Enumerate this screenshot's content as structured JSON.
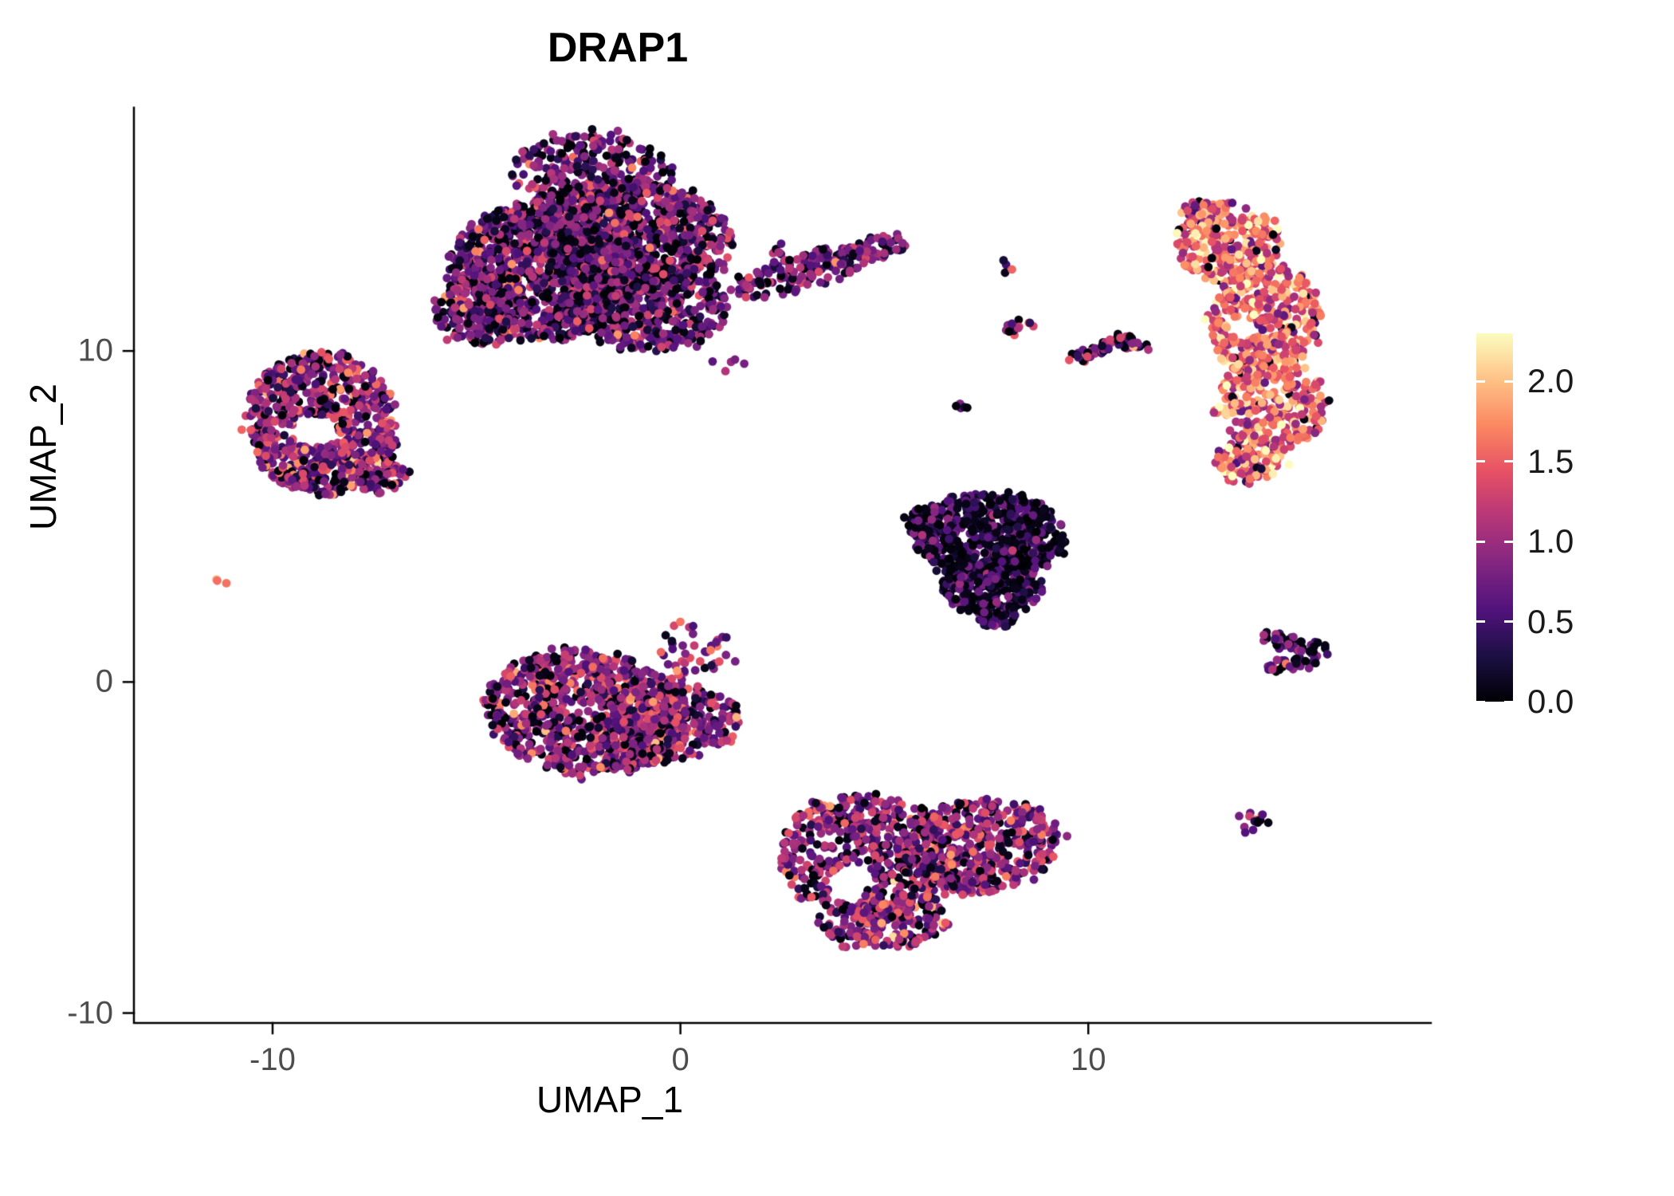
{
  "chart_data": {
    "type": "scatter",
    "title": "DRAP1",
    "xlabel": "UMAP_1",
    "ylabel": "UMAP_2",
    "xlim": [
      -13.4,
      18.4
    ],
    "ylim": [
      -10.3,
      17.35
    ],
    "grid": false,
    "legend_position": "right",
    "point_radius_px": 5.4,
    "seed": 20240613,
    "x_ticks": [
      {
        "value": -10,
        "label": "-10"
      },
      {
        "value": 0,
        "label": "0"
      },
      {
        "value": 10,
        "label": "10"
      }
    ],
    "y_ticks": [
      {
        "value": 10,
        "label": "10"
      },
      {
        "value": 0,
        "label": "0"
      },
      {
        "value": -10,
        "label": "-10"
      }
    ],
    "colorbar": {
      "min": 0,
      "max": 2.3,
      "palette": "magma",
      "ticks": [
        {
          "value": 0,
          "label": "0.0"
        },
        {
          "value": 0.5,
          "label": "0.5"
        },
        {
          "value": 1,
          "label": "1.0"
        },
        {
          "value": 1.5,
          "label": "1.5"
        },
        {
          "value": 2,
          "label": "2.0"
        }
      ],
      "stops": [
        [
          0,
          [
            0,
            0,
            4
          ]
        ],
        [
          0.125,
          [
            28,
            16,
            68
          ]
        ],
        [
          0.25,
          [
            81,
            18,
            124
          ]
        ],
        [
          0.375,
          [
            130,
            38,
            129
          ]
        ],
        [
          0.5,
          [
            182,
            54,
            121
          ]
        ],
        [
          0.625,
          [
            230,
            81,
            100
          ]
        ],
        [
          0.75,
          [
            251,
            136,
            97
          ]
        ],
        [
          0.875,
          [
            254,
            194,
            135
          ]
        ],
        [
          1,
          [
            252,
            253,
            191
          ]
        ]
      ]
    },
    "expression_profiles": {
      "mid": {
        "black_frac": 0.22,
        "mean": 0.78,
        "sd": 0.38
      },
      "midBright": {
        "black_frac": 0.15,
        "mean": 0.95,
        "sd": 0.4
      },
      "bright": {
        "black_frac": 0.03,
        "mean": 1.55,
        "sd": 0.42
      },
      "dark": {
        "black_frac": 0.45,
        "mean": 0.5,
        "sd": 0.3
      },
      "smallDark": {
        "black_frac": 0.3,
        "mean": 0.7,
        "sd": 0.35
      },
      "microMix": {
        "black_frac": 0.28,
        "mean": 0.95,
        "sd": 0.55
      },
      "tinyMix": {
        "black_frac": 0.25,
        "mean": 1.3,
        "sd": 0.5
      }
    },
    "clusters": [
      {
        "name": "main-top-a",
        "cx": -3.4,
        "cy": 12.4,
        "rx": 2.3,
        "ry": 2.1,
        "rot": 0,
        "n": 1000,
        "profile": "mid"
      },
      {
        "name": "main-top-b",
        "cx": -1.3,
        "cy": 13.5,
        "rx": 2.6,
        "ry": 1.7,
        "rot": -10,
        "n": 900,
        "profile": "mid"
      },
      {
        "name": "main-top-c",
        "cx": -0.8,
        "cy": 11.3,
        "rx": 1.9,
        "ry": 1.3,
        "rot": 0,
        "n": 420,
        "profile": "mid"
      },
      {
        "name": "main-top-d",
        "cx": -4.8,
        "cy": 11.2,
        "rx": 1.2,
        "ry": 1.0,
        "rot": 20,
        "n": 200,
        "profile": "mid"
      },
      {
        "name": "main-top-e",
        "cx": -2.2,
        "cy": 15.4,
        "rx": 2.0,
        "ry": 1.2,
        "rot": 0,
        "n": 260,
        "profile": "mid"
      },
      {
        "name": "arm-a",
        "cx": 3.0,
        "cy": 12.4,
        "rx": 1.8,
        "ry": 0.5,
        "rot": 18,
        "n": 150,
        "profile": "mid"
      },
      {
        "name": "arm-b",
        "cx": 4.7,
        "cy": 13.1,
        "rx": 0.9,
        "ry": 0.35,
        "rot": 10,
        "n": 50,
        "profile": "mid"
      },
      {
        "name": "stray-a",
        "cx": 1.2,
        "cy": 9.6,
        "rx": 0.5,
        "ry": 0.3,
        "rot": 0,
        "n": 5,
        "profile": "mid"
      },
      {
        "name": "left-ring",
        "cx": -8.8,
        "cy": 7.8,
        "rx": 1.85,
        "ry": 2.15,
        "rot": 10,
        "n": 750,
        "profile": "midBright",
        "hole": {
          "x": -9.0,
          "y": 7.6,
          "r": 0.5
        }
      },
      {
        "name": "left-ring-tail",
        "cx": -7.4,
        "cy": 6.3,
        "rx": 0.65,
        "ry": 0.55,
        "rot": 0,
        "n": 80,
        "profile": "midBright"
      },
      {
        "name": "tiny-left",
        "cx": -11.2,
        "cy": 3.0,
        "rx": 0.2,
        "ry": 0.15,
        "rot": 0,
        "n": 3,
        "profile": "tinyMix"
      },
      {
        "name": "right-bright-spur",
        "cx": 12.8,
        "cy": 14.2,
        "rx": 0.45,
        "ry": 0.35,
        "rot": 0,
        "n": 35,
        "profile": "bright"
      },
      {
        "name": "right-bright-a",
        "cx": 13.4,
        "cy": 13.3,
        "rx": 1.3,
        "ry": 1.2,
        "rot": -15,
        "n": 270,
        "profile": "bright"
      },
      {
        "name": "right-bright-b",
        "cx": 14.35,
        "cy": 10.9,
        "rx": 1.35,
        "ry": 1.7,
        "rot": -5,
        "n": 380,
        "profile": "bright",
        "hole": {
          "x": 13.8,
          "y": 10.7,
          "r": 0.35
        }
      },
      {
        "name": "right-bright-c",
        "cx": 14.5,
        "cy": 8.4,
        "rx": 1.35,
        "ry": 1.4,
        "rot": 10,
        "n": 300,
        "profile": "bright"
      },
      {
        "name": "right-bright-d",
        "cx": 14.0,
        "cy": 6.7,
        "rx": 0.85,
        "ry": 0.7,
        "rot": 20,
        "n": 110,
        "profile": "bright"
      },
      {
        "name": "micro-a",
        "cx": 2.4,
        "cy": 13.0,
        "rx": 0.3,
        "ry": 0.22,
        "rot": 0,
        "n": 6,
        "profile": "microMix"
      },
      {
        "name": "micro-b",
        "cx": 8.35,
        "cy": 10.7,
        "rx": 0.45,
        "ry": 0.25,
        "rot": 15,
        "n": 12,
        "profile": "microMix"
      },
      {
        "name": "micro-c",
        "cx": 8.1,
        "cy": 12.6,
        "rx": 0.22,
        "ry": 0.18,
        "rot": 0,
        "n": 4,
        "profile": "smallDark"
      },
      {
        "name": "micro-arc-a",
        "cx": 10.1,
        "cy": 9.95,
        "rx": 0.55,
        "ry": 0.18,
        "rot": 20,
        "n": 32,
        "profile": "microMix"
      },
      {
        "name": "micro-arc-b",
        "cx": 11.0,
        "cy": 10.25,
        "rx": 0.5,
        "ry": 0.18,
        "rot": -10,
        "n": 28,
        "profile": "microMix"
      },
      {
        "name": "micro-d",
        "cx": 7.0,
        "cy": 8.3,
        "rx": 0.25,
        "ry": 0.18,
        "rot": 0,
        "n": 5,
        "profile": "smallDark"
      },
      {
        "name": "mid-right-a",
        "cx": 7.6,
        "cy": 4.4,
        "rx": 1.85,
        "ry": 1.35,
        "rot": 0,
        "n": 600,
        "profile": "dark"
      },
      {
        "name": "mid-right-b",
        "cx": 7.6,
        "cy": 2.9,
        "rx": 1.15,
        "ry": 0.85,
        "rot": 0,
        "n": 240,
        "profile": "dark"
      },
      {
        "name": "mid-right-tip",
        "cx": 7.7,
        "cy": 2.0,
        "rx": 0.45,
        "ry": 0.4,
        "rot": 0,
        "n": 45,
        "profile": "dark"
      },
      {
        "name": "mid-right-left",
        "cx": 6.1,
        "cy": 4.8,
        "rx": 0.55,
        "ry": 0.5,
        "rot": 0,
        "n": 70,
        "profile": "dark"
      },
      {
        "name": "center-left-a",
        "cx": -2.3,
        "cy": -0.9,
        "rx": 2.5,
        "ry": 1.9,
        "rot": -10,
        "n": 900,
        "profile": "midBright"
      },
      {
        "name": "center-left-b",
        "cx": -0.2,
        "cy": -1.3,
        "rx": 1.7,
        "ry": 1.1,
        "rot": 15,
        "n": 300,
        "profile": "midBright"
      },
      {
        "name": "center-left-c",
        "cx": 0.3,
        "cy": 0.9,
        "rx": 0.9,
        "ry": 1.0,
        "rot": 0,
        "n": 45,
        "profile": "midBright"
      },
      {
        "name": "bottom-a",
        "cx": 4.6,
        "cy": -5.3,
        "rx": 2.2,
        "ry": 1.9,
        "rot": -15,
        "n": 550,
        "profile": "midBright",
        "hole": {
          "x": 4.2,
          "y": -6.1,
          "r": 0.6
        }
      },
      {
        "name": "bottom-b",
        "cx": 7.3,
        "cy": -5.0,
        "rx": 2.0,
        "ry": 1.4,
        "rot": 10,
        "n": 450,
        "profile": "midBright"
      },
      {
        "name": "bottom-c",
        "cx": 5.0,
        "cy": -7.2,
        "rx": 1.6,
        "ry": 0.8,
        "rot": 5,
        "n": 180,
        "profile": "midBright"
      },
      {
        "name": "right-arrow-a",
        "cx": 15.0,
        "cy": 1.15,
        "rx": 0.9,
        "ry": 0.22,
        "rot": -15,
        "n": 40,
        "profile": "smallDark"
      },
      {
        "name": "right-arrow-b",
        "cx": 15.1,
        "cy": 0.6,
        "rx": 0.8,
        "ry": 0.22,
        "rot": 20,
        "n": 35,
        "profile": "smallDark"
      },
      {
        "name": "tiny-right-low",
        "cx": 14.05,
        "cy": -4.25,
        "rx": 0.45,
        "ry": 0.35,
        "rot": 0,
        "n": 14,
        "profile": "microMix"
      }
    ]
  }
}
